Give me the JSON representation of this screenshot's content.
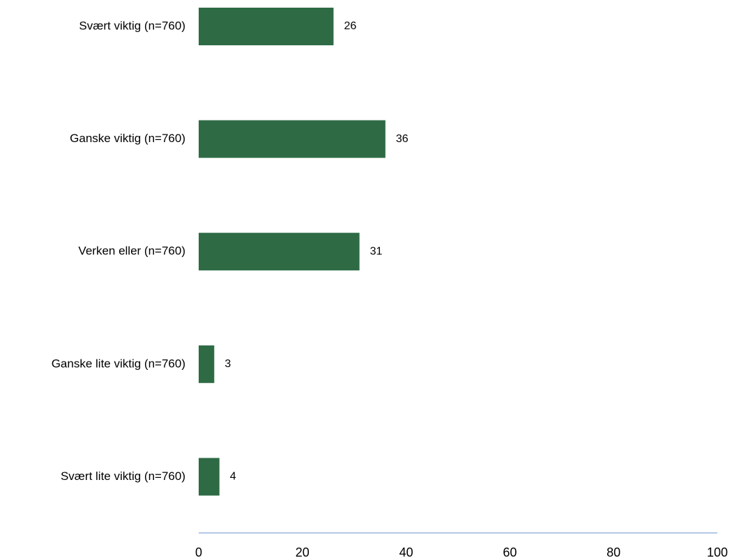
{
  "chart_data": {
    "type": "bar",
    "orientation": "horizontal",
    "categories": [
      "Svært viktig (n=760)",
      "Ganske viktig (n=760)",
      "Verken eller (n=760)",
      "Ganske lite viktig (n=760)",
      "Svært lite viktig (n=760)"
    ],
    "values": [
      26,
      36,
      31,
      3,
      4
    ],
    "xlim": [
      0,
      100
    ],
    "xticks": [
      "0",
      "20",
      "40",
      "60",
      "80",
      "100"
    ],
    "grid": false,
    "legend": "none",
    "colors": {
      "bar": "#2e6b45",
      "axis": "#b4c7e7",
      "text": "#000000"
    }
  }
}
